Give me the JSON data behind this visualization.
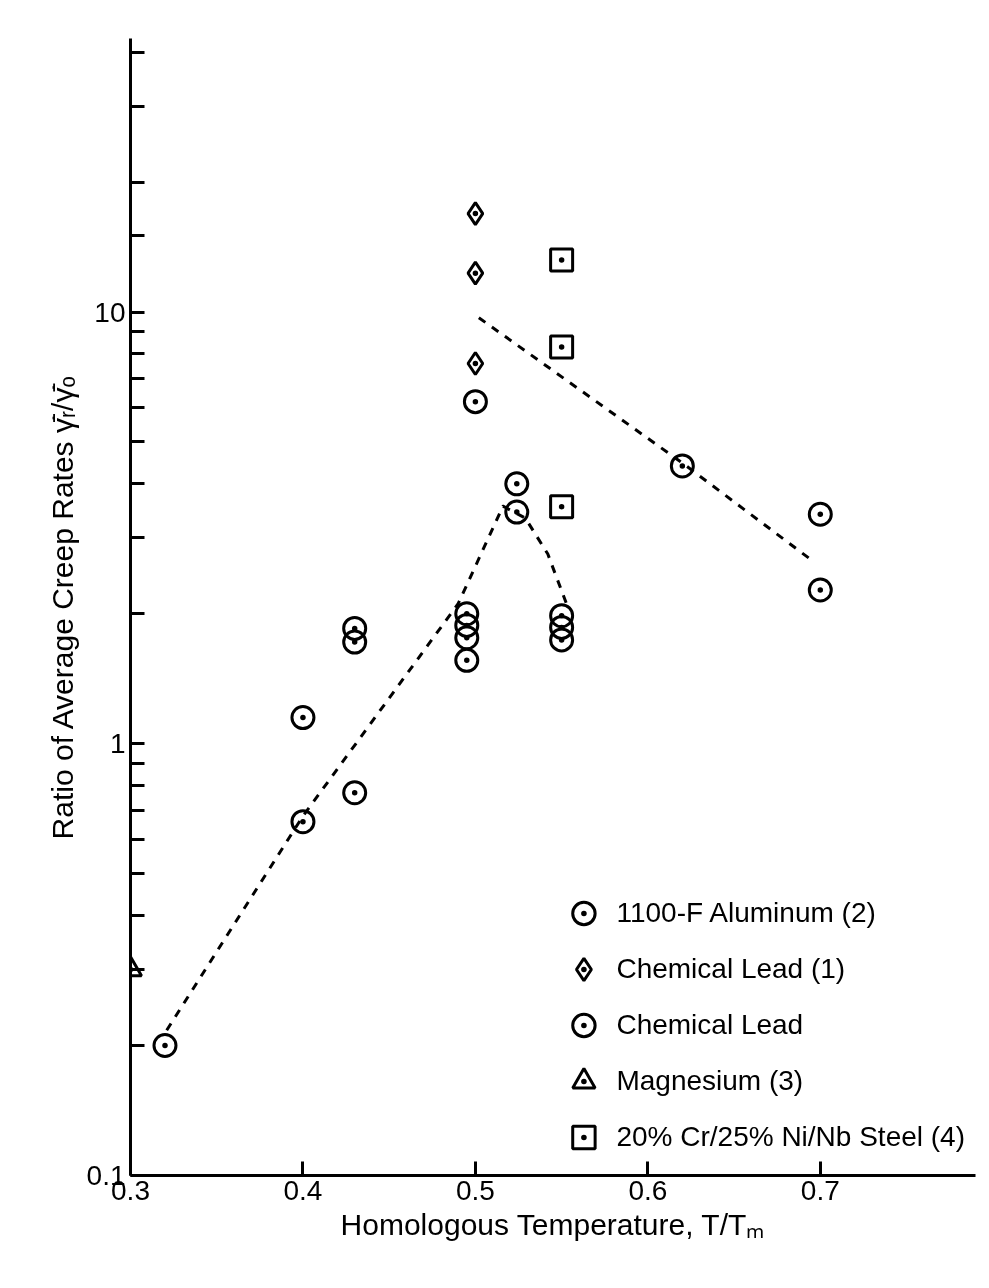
{
  "chart_data": {
    "type": "scatter",
    "xlabel": "Homologous Temperature, T/Tₘ",
    "ylabel": "Ratio of Average Creep Rates γ̄̇ᵣ/γ̄̇ₒ",
    "xlim": [
      0.3,
      0.79
    ],
    "ylim": [
      0.1,
      43
    ],
    "log": "y",
    "grid": false,
    "legend": "bottom right",
    "xticks": [
      0.3,
      0.4,
      0.5,
      0.6,
      0.7
    ],
    "yticks": [
      {
        "value": 0.1,
        "label": "0.1"
      },
      {
        "value": 0.2,
        "label": null
      },
      {
        "value": 0.3,
        "label": null
      },
      {
        "value": 0.4,
        "label": null
      },
      {
        "value": 0.5,
        "label": null
      },
      {
        "value": 0.6,
        "label": null
      },
      {
        "value": 0.7,
        "label": null
      },
      {
        "value": 0.8,
        "label": null
      },
      {
        "value": 0.9,
        "label": null
      },
      1,
      {
        "value": 2,
        "label": null
      },
      {
        "value": 3,
        "label": null
      },
      {
        "value": 4,
        "label": null
      },
      {
        "value": 5,
        "label": null
      },
      {
        "value": 6,
        "label": null
      },
      {
        "value": 7,
        "label": null
      },
      {
        "value": 8,
        "label": null
      },
      {
        "value": 9,
        "label": null
      },
      10,
      {
        "value": 15,
        "label": null
      },
      {
        "value": 20,
        "label": null
      },
      {
        "value": 30,
        "label": null
      },
      {
        "value": 40,
        "label": null
      }
    ],
    "series": [
      {
        "name": "1100-F Aluminum (2)",
        "color": "#000000",
        "marker": "circle",
        "x": [
          0.32,
          0.4,
          0.4,
          0.43,
          0.43,
          0.43,
          0.495,
          0.495,
          0.495,
          0.495,
          0.524,
          0.524,
          0.55,
          0.55,
          0.55
        ],
        "values": [
          0.2,
          0.66,
          1.15,
          0.77,
          1.85,
          1.72,
          2.0,
          1.88,
          1.76,
          1.56,
          4.0,
          3.44,
          1.98,
          1.86,
          1.74
        ]
      },
      {
        "name": "Chemical Lead (1)",
        "color": "#000000",
        "marker": "diamond",
        "x": [
          0.5,
          0.5,
          0.5
        ],
        "values": [
          16.9,
          12.3,
          7.6
        ]
      },
      {
        "name": "Chemical Lead",
        "color": "#000000",
        "x": [
          0.5,
          0.62,
          0.7,
          0.7
        ],
        "values": [
          6.2,
          4.4,
          3.4,
          2.27
        ]
      },
      {
        "name": "Magnesium (3)",
        "color": "#000000",
        "marker": "triangle",
        "x": [
          0.3
        ],
        "values": [
          0.3
        ]
      },
      {
        "name": "20% Cr/25% Ni/Nb Steel (4)",
        "color": "#000000",
        "marker": "square",
        "x": [
          0.55,
          0.55,
          0.55
        ],
        "values": [
          13.2,
          8.3,
          3.54
        ]
      },
      {
        "type": "line",
        "color": "#000000",
        "line_style": "dashed",
        "marker": "none",
        "x": [
          0.321,
          0.4,
          0.49,
          0.516,
          0.529,
          0.542,
          0.553
        ],
        "values": [
          0.217,
          0.68,
          2.11,
          3.55,
          3.33,
          2.75,
          2.1
        ]
      },
      {
        "type": "line",
        "color": "#000000",
        "line_style": "dashed",
        "marker": "none",
        "x": [
          0.502,
          0.62,
          0.694
        ],
        "values": [
          9.7,
          4.47,
          2.68
        ]
      }
    ]
  }
}
